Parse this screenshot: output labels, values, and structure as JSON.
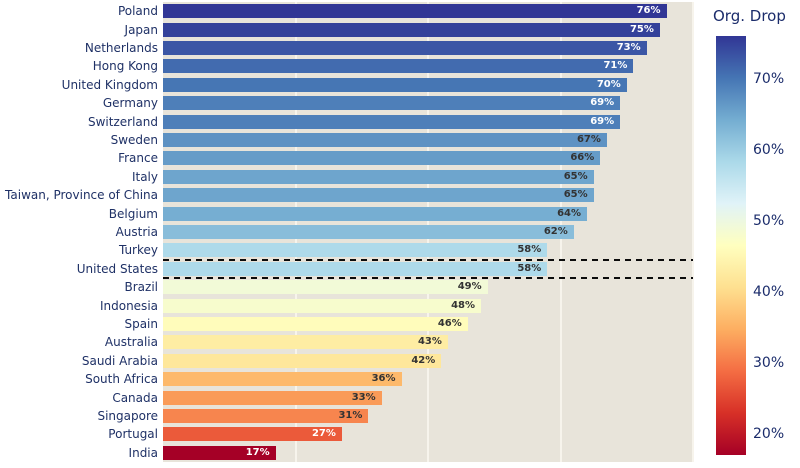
{
  "chart_data": {
    "type": "bar",
    "orientation": "horizontal",
    "title": "",
    "xlabel": "",
    "ylabel": "",
    "categories": [
      "Poland",
      "Japan",
      "Netherlands",
      "Hong Kong",
      "United Kingdom",
      "Germany",
      "Switzerland",
      "Sweden",
      "France",
      "Italy",
      "Taiwan, Province of China",
      "Belgium",
      "Austria",
      "Turkey",
      "United States",
      "Brazil",
      "Indonesia",
      "Spain",
      "Australia",
      "Saudi Arabia",
      "South Africa",
      "Canada",
      "Singapore",
      "Portugal",
      "India"
    ],
    "values": [
      76,
      75,
      73,
      71,
      70,
      69,
      69,
      67,
      66,
      65,
      65,
      64,
      62,
      58,
      58,
      49,
      48,
      46,
      43,
      42,
      36,
      33,
      31,
      27,
      17
    ],
    "value_suffix": "%",
    "xlim": [
      0,
      80
    ],
    "gridline_values": [
      20,
      40,
      60,
      80
    ],
    "grid_on": true,
    "highlight_category": "United States",
    "legend_position": "right",
    "colorbar": {
      "title": "Org. Drop",
      "min": 17,
      "max": 76,
      "ticks": [
        70,
        60,
        50,
        40,
        30,
        20
      ],
      "tick_suffix": "%"
    },
    "colorscale": [
      {
        "t": 0.0,
        "color": "#a50026"
      },
      {
        "t": 0.1,
        "color": "#d73027"
      },
      {
        "t": 0.2,
        "color": "#f46d43"
      },
      {
        "t": 0.3,
        "color": "#fdae61"
      },
      {
        "t": 0.4,
        "color": "#fee090"
      },
      {
        "t": 0.5,
        "color": "#ffffbf"
      },
      {
        "t": 0.6,
        "color": "#e0f3f8"
      },
      {
        "t": 0.7,
        "color": "#abd9e9"
      },
      {
        "t": 0.8,
        "color": "#74add1"
      },
      {
        "t": 0.9,
        "color": "#4575b4"
      },
      {
        "t": 1.0,
        "color": "#313695"
      }
    ]
  },
  "colors": {
    "page_bg": "#ffffff",
    "plot_bg": "#e8e4da",
    "gridline": "#f7f4ec",
    "category_text": "#1f3166",
    "bar_label_dark": "#333333",
    "bar_label_light": "#ffffff",
    "dash_line": "#0b0b0b",
    "colorbar_text": "#1b2c6b"
  }
}
